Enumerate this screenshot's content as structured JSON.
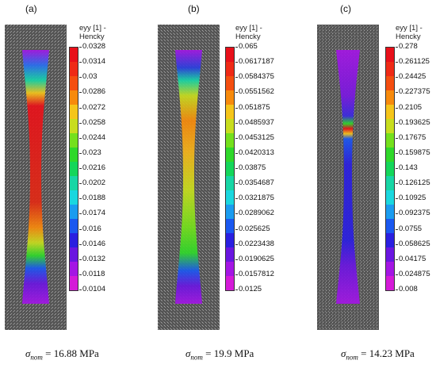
{
  "panels": [
    {
      "label": "(a)",
      "legend_title": "eyy [1] -\nHencky",
      "ticks": [
        "0.0328",
        "0.0314",
        "0.03",
        "0.0286",
        "0.0272",
        "0.0258",
        "0.0244",
        "0.023",
        "0.0216",
        "0.0202",
        "0.0188",
        "0.0174",
        "0.016",
        "0.0146",
        "0.0132",
        "0.0118",
        "0.0104"
      ],
      "caption_symbol": "σ",
      "caption_sub": "nom",
      "caption_value": " = 16.88 MPa"
    },
    {
      "label": "(b)",
      "legend_title": "eyy [1] -\nHencky",
      "ticks": [
        "0.065",
        "0.0617187",
        "0.0584375",
        "0.0551562",
        "0.051875",
        "0.0485937",
        "0.0453125",
        "0.0420313",
        "0.03875",
        "0.0354687",
        "0.0321875",
        "0.0289062",
        "0.025625",
        "0.0223438",
        "0.0190625",
        "0.0157812",
        "0.0125"
      ],
      "caption_symbol": "σ",
      "caption_sub": "nom",
      "caption_value": " = 19.9 MPa"
    },
    {
      "label": "(c)",
      "legend_title": "eyy [1] -\nHencky",
      "ticks": [
        "0.278",
        "0.261125",
        "0.24425",
        "0.227375",
        "0.2105",
        "0.193625",
        "0.17675",
        "0.159875",
        "0.143",
        "0.126125",
        "0.10925",
        "0.092375",
        "0.0755",
        "0.058625",
        "0.04175",
        "0.024875",
        "0.008"
      ],
      "caption_symbol": "σ",
      "caption_sub": "nom",
      "caption_value": " = 14.23 MPa"
    }
  ],
  "colorbar_colors": [
    "#e8101a",
    "#ef2a16",
    "#f44e10",
    "#f78a0c",
    "#f5c51a",
    "#c8dd1e",
    "#74e01c",
    "#2fd82a",
    "#14d65a",
    "#17d6a5",
    "#1ad7df",
    "#1a9cf0",
    "#1a58f0",
    "#2a1fe0",
    "#6a16e0",
    "#a416e4",
    "#d41ad8"
  ]
}
